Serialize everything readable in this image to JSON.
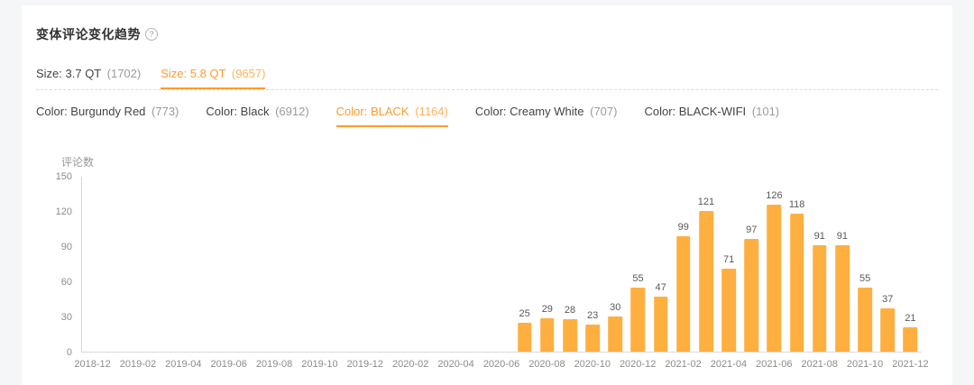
{
  "colors": {
    "accent": "#FF9A2B",
    "accent_light": "#FFB25E",
    "bar": "#FFAF3F",
    "card_bg": "#FFFFFF",
    "page_bg": "#F5F6F8"
  },
  "header": {
    "title": "变体评论变化趋势"
  },
  "size_tabs": [
    {
      "label": "Size: 3.7 QT",
      "count": "(1702)",
      "selected": false
    },
    {
      "label": "Size: 5.8 QT",
      "count": "(9657)",
      "selected": true
    }
  ],
  "color_tabs": [
    {
      "label": "Color: Burgundy Red",
      "count": "(773)",
      "selected": false
    },
    {
      "label": "Color: Black",
      "count": "(6912)",
      "selected": false
    },
    {
      "label": "Color: BLACK",
      "count": "(1164)",
      "selected": true
    },
    {
      "label": "Color: Creamy White",
      "count": "(707)",
      "selected": false
    },
    {
      "label": "Color: BLACK-WIFI",
      "count": "(101)",
      "selected": false
    }
  ],
  "chart_data": {
    "type": "bar",
    "title": "",
    "xlabel": "",
    "ylabel": "评论数",
    "ylim": [
      0,
      150
    ],
    "y_ticks": [
      0,
      30,
      60,
      90,
      120,
      150
    ],
    "grid": false,
    "legend": "none",
    "x_ticks": [
      "2018-12",
      "2019-02",
      "2019-04",
      "2019-06",
      "2019-08",
      "2019-10",
      "2019-12",
      "2020-02",
      "2020-04",
      "2020-06",
      "2020-08",
      "2020-10",
      "2020-12",
      "2021-02",
      "2021-04",
      "2021-06",
      "2021-08",
      "2021-10",
      "2021-12"
    ],
    "series": [
      {
        "name": "评论数",
        "points": [
          {
            "x": "2020-07",
            "y": 25
          },
          {
            "x": "2020-08",
            "y": 29
          },
          {
            "x": "2020-09",
            "y": 28
          },
          {
            "x": "2020-10",
            "y": 23
          },
          {
            "x": "2020-11",
            "y": 30
          },
          {
            "x": "2020-12",
            "y": 55
          },
          {
            "x": "2021-01",
            "y": 47
          },
          {
            "x": "2021-02",
            "y": 99
          },
          {
            "x": "2021-03",
            "y": 121
          },
          {
            "x": "2021-04",
            "y": 71
          },
          {
            "x": "2021-05",
            "y": 97
          },
          {
            "x": "2021-06",
            "y": 126
          },
          {
            "x": "2021-07",
            "y": 118
          },
          {
            "x": "2021-08",
            "y": 91
          },
          {
            "x": "2021-09",
            "y": 91
          },
          {
            "x": "2021-10",
            "y": 55
          },
          {
            "x": "2021-11",
            "y": 37
          },
          {
            "x": "2021-12",
            "y": 21
          }
        ]
      }
    ]
  }
}
